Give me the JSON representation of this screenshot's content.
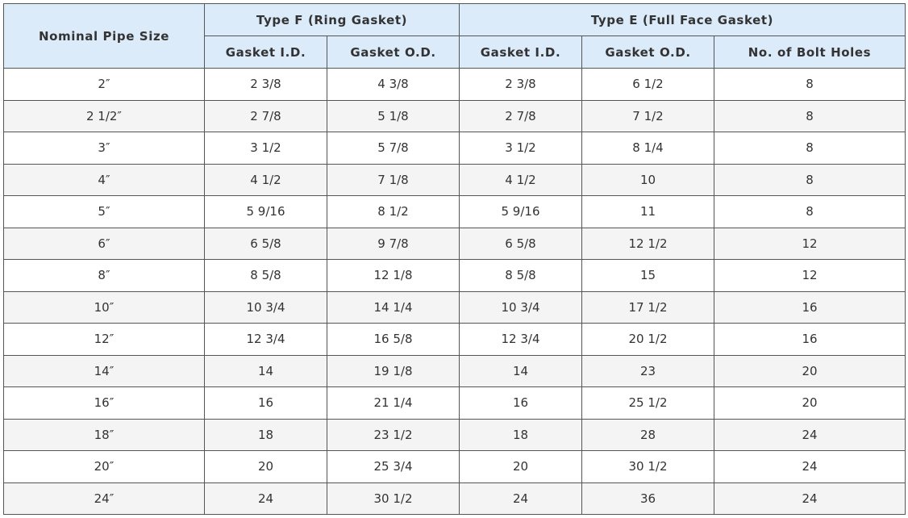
{
  "table": {
    "header": {
      "nominal": "Nominal Pipe Size",
      "type_f": "Type F (Ring Gasket)",
      "type_e": "Type E (Full Face Gasket)",
      "f_id": "Gasket I.D.",
      "f_od": "Gasket O.D.",
      "e_id": "Gasket I.D.",
      "e_od": "Gasket O.D.",
      "bolts": "No. of Bolt Holes"
    },
    "rows": [
      [
        "2″",
        "2 3/8",
        "4 3/8",
        "2 3/8",
        "6 1/2",
        "8"
      ],
      [
        "2 1/2″",
        "2 7/8",
        "5 1/8",
        "2 7/8",
        "7 1/2",
        "8"
      ],
      [
        "3″",
        "3 1/2",
        "5 7/8",
        "3 1/2",
        "8 1/4",
        "8"
      ],
      [
        "4″",
        "4 1/2",
        "7 1/8",
        "4 1/2",
        "10",
        "8"
      ],
      [
        "5″",
        "5 9/16",
        "8 1/2",
        "5 9/16",
        "11",
        "8"
      ],
      [
        "6″",
        "6 5/8",
        "9 7/8",
        "6 5/8",
        "12 1/2",
        "12"
      ],
      [
        "8″",
        "8 5/8",
        "12 1/8",
        "8 5/8",
        "15",
        "12"
      ],
      [
        "10″",
        "10 3/4",
        "14 1/4",
        "10 3/4",
        "17 1/2",
        "16"
      ],
      [
        "12″",
        "12 3/4",
        "16 5/8",
        "12 3/4",
        "20 1/2",
        "16"
      ],
      [
        "14″",
        "14",
        "19 1/8",
        "14",
        "23",
        "20"
      ],
      [
        "16″",
        "16",
        "21 1/4",
        "16",
        "25 1/2",
        "20"
      ],
      [
        "18″",
        "18",
        "23 1/2",
        "18",
        "28",
        "24"
      ],
      [
        "20″",
        "20",
        "25 3/4",
        "20",
        "30 1/2",
        "24"
      ],
      [
        "24″",
        "24",
        "30 1/2",
        "24",
        "36",
        "24"
      ]
    ]
  }
}
